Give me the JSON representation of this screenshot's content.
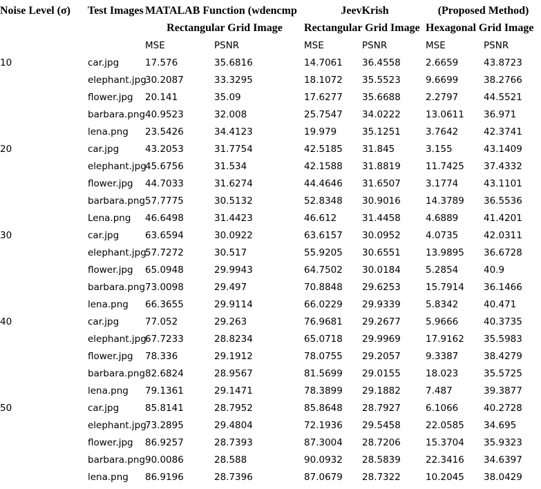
{
  "colors": {
    "background": "#ffffff",
    "text": "#000000"
  },
  "table": {
    "header_row1": {
      "noise_level": "Noise Level (σ)",
      "test_images": "Test Images",
      "matlab_method": "MATALAB Function (wdencmp",
      "jeevkrish_method": "JeevKrish",
      "proposed_method": "(Proposed Method)"
    },
    "header_row2": {
      "matlab_grid": "Rectangular Grid Image",
      "jeevkrish_grid": "Rectangular Grid Image",
      "proposed_grid": "Hexagonal Grid Image"
    },
    "header_row3": {
      "mse": "MSE",
      "psnr": "PSNR"
    },
    "groups": [
      {
        "noise_level": "10",
        "rows": [
          {
            "image": "car.jpg",
            "values": [
              "17.576",
              "35.6816",
              "14.7061",
              "36.4558",
              "2.6659",
              "43.8723"
            ]
          },
          {
            "image": "elephant.jpg",
            "values": [
              "30.2087",
              "33.3295",
              "18.1072",
              "35.5523",
              "9.6699",
              "38.2766"
            ]
          },
          {
            "image": "flower.jpg",
            "values": [
              "20.141",
              "35.09",
              "17.6277",
              "35.6688",
              "2.2797",
              "44.5521"
            ]
          },
          {
            "image": "barbara.png",
            "values": [
              "40.9523",
              "32.008",
              "25.7547",
              "34.0222",
              "13.0611",
              "36.971"
            ]
          },
          {
            "image": "lena.png",
            "values": [
              "23.5426",
              "34.4123",
              "19.979",
              "35.1251",
              "3.7642",
              "42.3741"
            ]
          }
        ]
      },
      {
        "noise_level": "20",
        "rows": [
          {
            "image": "car.jpg",
            "values": [
              "43.2053",
              "31.7754",
              "42.5185",
              "31.845",
              "3.155",
              "43.1409"
            ]
          },
          {
            "image": "elephant.jpg",
            "values": [
              "45.6756",
              "31.534",
              "42.1588",
              "31.8819",
              "11.7425",
              "37.4332"
            ]
          },
          {
            "image": "flower.jpg",
            "values": [
              "44.7033",
              "31.6274",
              "44.4646",
              "31.6507",
              "3.1774",
              "43.1101"
            ]
          },
          {
            "image": "barbara.png",
            "values": [
              "57.7775",
              "30.5132",
              "52.8348",
              "30.9016",
              "14.3789",
              "36.5536"
            ]
          },
          {
            "image": "Lena.png",
            "values": [
              "46.6498",
              "31.4423",
              "46.612",
              "31.4458",
              "4.6889",
              "41.4201"
            ]
          }
        ]
      },
      {
        "noise_level": "30",
        "rows": [
          {
            "image": "car.jpg",
            "values": [
              "63.6594",
              "30.0922",
              "63.6157",
              "30.0952",
              "4.0735",
              "42.0311"
            ]
          },
          {
            "image": "elephant.jpg",
            "values": [
              "57.7272",
              "30.517",
              "55.9205",
              "30.6551",
              "13.9895",
              "36.6728"
            ]
          },
          {
            "image": "flower.jpg",
            "values": [
              "65.0948",
              "29.9943",
              "64.7502",
              "30.0184",
              "5.2854",
              "40.9"
            ]
          },
          {
            "image": "barbara.png",
            "values": [
              "73.0098",
              "29.497",
              "70.8848",
              "29.6253",
              "15.7914",
              "36.1466"
            ]
          },
          {
            "image": "lena.png",
            "values": [
              "66.3655",
              "29.9114",
              "66.0229",
              "29.9339",
              "5.8342",
              "40.471"
            ]
          }
        ]
      },
      {
        "noise_level": "40",
        "rows": [
          {
            "image": "car.jpg",
            "values": [
              "77.052",
              "29.263",
              "76.9681",
              "29.2677",
              "5.9666",
              "40.3735"
            ]
          },
          {
            "image": "elephant.jpg",
            "values": [
              "67.7233",
              "28.8234",
              "65.0718",
              "29.9969",
              "17.9162",
              "35.5983"
            ]
          },
          {
            "image": "flower.jpg",
            "values": [
              "78.336",
              "29.1912",
              "78.0755",
              "29.2057",
              "9.3387",
              "38.4279"
            ]
          },
          {
            "image": "barbara.png",
            "values": [
              "82.6824",
              "28.9567",
              "81.5699",
              "29.0155",
              "18.023",
              "35.5725"
            ]
          },
          {
            "image": "lena.png",
            "values": [
              "79.1361",
              "29.1471",
              "78.3899",
              "29.1882",
              "7.487",
              "39.3877"
            ]
          }
        ]
      },
      {
        "noise_level": "50",
        "rows": [
          {
            "image": "car.jpg",
            "values": [
              "85.8141",
              "28.7952",
              "85.8648",
              "28.7927",
              "6.1066",
              "40.2728"
            ]
          },
          {
            "image": "elephant.jpg",
            "values": [
              "73.2895",
              "29.4804",
              "72.1936",
              "29.5458",
              "22.0585",
              "34.695"
            ]
          },
          {
            "image": "flower.jpg",
            "values": [
              "86.9257",
              "28.7393",
              "87.3004",
              "28.7206",
              "15.3704",
              "35.9323"
            ]
          },
          {
            "image": "barbara.png",
            "values": [
              "90.0086",
              "28.588",
              "90.0932",
              "28.5839",
              "22.3416",
              "34.6397"
            ]
          },
          {
            "image": "lena.png",
            "values": [
              "86.9196",
              "28.7396",
              "87.0679",
              "28.7322",
              "10.2045",
              "38.0429"
            ]
          }
        ]
      }
    ]
  }
}
